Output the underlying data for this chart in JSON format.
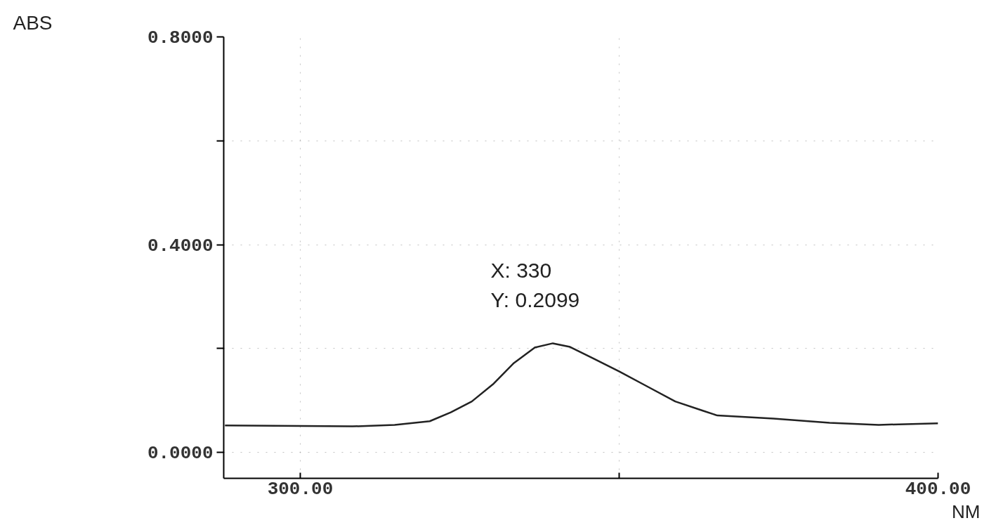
{
  "chart_data": {
    "type": "line",
    "xlabel": "NM",
    "ylabel": "ABS",
    "annotations": [
      "X: 330\nY: 0.2099"
    ],
    "x": [
      288.2,
      308.2,
      314.8,
      320.3,
      323.6,
      326.9,
      330.2,
      333.5,
      336.8,
      339.6,
      342.3,
      345.6,
      350,
      354.4,
      358.8,
      363.2,
      365.4,
      374.2,
      383,
      390.7,
      400
    ],
    "series": [
      {
        "color": "#222222",
        "values": [
          0.052,
          0.05,
          0.053,
          0.06,
          0.077,
          0.098,
          0.131,
          0.172,
          0.202,
          0.21,
          0.203,
          0.183,
          0.156,
          0.127,
          0.098,
          0.08,
          0.071,
          0.065,
          0.057,
          0.053,
          0.056
        ]
      }
    ],
    "xlim": [
      288,
      400
    ],
    "ylim": [
      -0.05,
      0.8
    ],
    "xticks": [
      {
        "value": 300,
        "label": "300.00"
      },
      {
        "value": 350,
        "label": null
      },
      {
        "value": 400,
        "label": "400.00"
      }
    ],
    "yticks": [
      {
        "value": 0,
        "label": "0.0000"
      },
      {
        "value": 0.2,
        "label": null
      },
      {
        "value": 0.4,
        "label": "0.4000"
      },
      {
        "value": 0.6,
        "label": null
      },
      {
        "value": 0.8,
        "label": "0.8000"
      }
    ],
    "grid": true,
    "marker": "none",
    "line_style": "solid"
  }
}
